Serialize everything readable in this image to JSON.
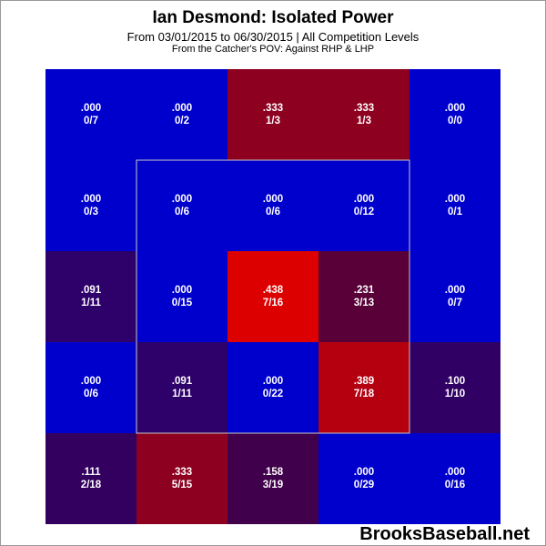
{
  "chart_data": {
    "type": "heatmap",
    "title": "Ian Desmond: Isolated Power",
    "subtitle": "From 03/01/2015 to 06/30/2015 | All Competition Levels",
    "note": "From the Catcher's POV:   Against RHP & LHP",
    "rows": 5,
    "cols": 5,
    "strike_zone": "inner 3x3 cells (rows 2-4, cols 2-4)",
    "cells": [
      [
        {
          "value": ".000",
          "ratio": "0/7"
        },
        {
          "value": ".000",
          "ratio": "0/2"
        },
        {
          "value": ".333",
          "ratio": "1/3"
        },
        {
          "value": ".333",
          "ratio": "1/3"
        },
        {
          "value": ".000",
          "ratio": "0/0"
        }
      ],
      [
        {
          "value": ".000",
          "ratio": "0/3"
        },
        {
          "value": ".000",
          "ratio": "0/6"
        },
        {
          "value": ".000",
          "ratio": "0/6"
        },
        {
          "value": ".000",
          "ratio": "0/12"
        },
        {
          "value": ".000",
          "ratio": "0/1"
        }
      ],
      [
        {
          "value": ".091",
          "ratio": "1/11"
        },
        {
          "value": ".000",
          "ratio": "0/15"
        },
        {
          "value": ".438",
          "ratio": "7/16"
        },
        {
          "value": ".231",
          "ratio": "3/13"
        },
        {
          "value": ".000",
          "ratio": "0/7"
        }
      ],
      [
        {
          "value": ".000",
          "ratio": "0/6"
        },
        {
          "value": ".091",
          "ratio": "1/11"
        },
        {
          "value": ".000",
          "ratio": "0/22"
        },
        {
          "value": ".389",
          "ratio": "7/18"
        },
        {
          "value": ".100",
          "ratio": "1/10"
        }
      ],
      [
        {
          "value": ".111",
          "ratio": "2/18"
        },
        {
          "value": ".333",
          "ratio": "5/15"
        },
        {
          "value": ".158",
          "ratio": "3/19"
        },
        {
          "value": ".000",
          "ratio": "0/29"
        },
        {
          "value": ".000",
          "ratio": "0/16"
        }
      ]
    ],
    "color_scale": {
      "low": "#0000cc",
      "high": "#dd0000",
      "max_value": 0.438
    }
  },
  "watermark": "BrooksBaseball.net"
}
